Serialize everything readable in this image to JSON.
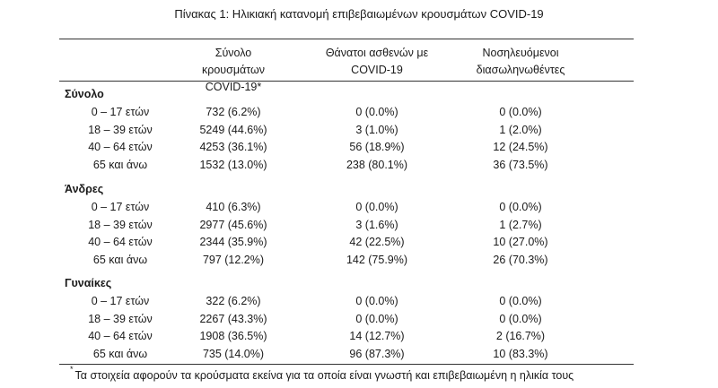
{
  "title": "Πίνακας 1: Ηλικιακή κατανομή επιβεβαιωμένων κρουσμάτων COVID-19",
  "headers": [
    {
      "line1": "Σύνολο κρουσμάτων",
      "line2": "COVID-19*"
    },
    {
      "line1": "Θάνατοι ασθενών με",
      "line2": "COVID-19"
    },
    {
      "line1": "Νοσηλευόμενοι",
      "line2": "διασωληνωθέντες"
    }
  ],
  "groups": [
    {
      "name": "Σύνολο",
      "rows": [
        {
          "age": "0 – 17 ετών",
          "cases": "732 (6.2%)",
          "deaths": "0 (0.0%)",
          "icu": "0 (0.0%)"
        },
        {
          "age": "18 – 39 ετών",
          "cases": "5249 (44.6%)",
          "deaths": "3 (1.0%)",
          "icu": "1 (2.0%)"
        },
        {
          "age": "40 – 64 ετών",
          "cases": "4253 (36.1%)",
          "deaths": "56 (18.9%)",
          "icu": "12 (24.5%)"
        },
        {
          "age": "65 και άνω",
          "cases": "1532 (13.0%)",
          "deaths": "238 (80.1%)",
          "icu": "36 (73.5%)"
        }
      ]
    },
    {
      "name": "Άνδρες",
      "rows": [
        {
          "age": "0 – 17 ετών",
          "cases": "410 (6.3%)",
          "deaths": "0 (0.0%)",
          "icu": "0 (0.0%)"
        },
        {
          "age": "18 – 39 ετών",
          "cases": "2977 (45.6%)",
          "deaths": "3 (1.6%)",
          "icu": "1 (2.7%)"
        },
        {
          "age": "40 – 64 ετών",
          "cases": "2344 (35.9%)",
          "deaths": "42 (22.5%)",
          "icu": "10 (27.0%)"
        },
        {
          "age": "65 και άνω",
          "cases": "797 (12.2%)",
          "deaths": "142 (75.9%)",
          "icu": "26 (70.3%)"
        }
      ]
    },
    {
      "name": "Γυναίκες",
      "rows": [
        {
          "age": "0 – 17 ετών",
          "cases": "322 (6.2%)",
          "deaths": "0 (0.0%)",
          "icu": "0 (0.0%)"
        },
        {
          "age": "18 – 39 ετών",
          "cases": "2267 (43.3%)",
          "deaths": "0 (0.0%)",
          "icu": "0 (0.0%)"
        },
        {
          "age": "40 – 64 ετών",
          "cases": "1908 (36.5%)",
          "deaths": "14 (12.7%)",
          "icu": "2 (16.7%)"
        },
        {
          "age": "65 και άνω",
          "cases": "735 (14.0%)",
          "deaths": "96 (87.3%)",
          "icu": "10 (83.3%)"
        }
      ]
    }
  ],
  "footnote": {
    "marker": "*",
    "text": "Τα στοιχεία αφορούν τα κρούσματα εκείνα για τα οποία είναι γνωστή και επιβεβαιωμένη η ηλικία τους"
  }
}
